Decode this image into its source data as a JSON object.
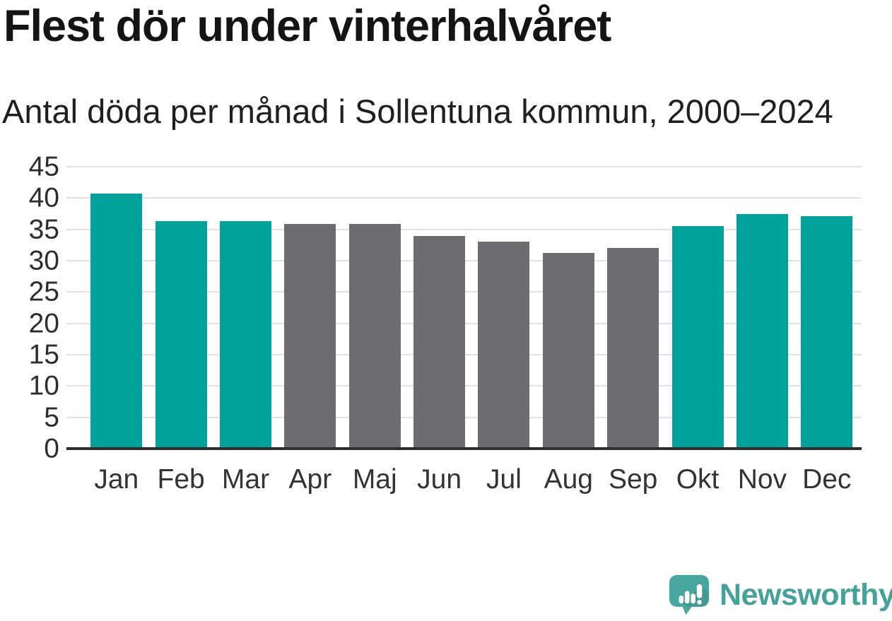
{
  "title": "Flest dör under vinterhalvåret",
  "subtitle": "Antal döda per månad i Sollentuna kommun, 2000–2024",
  "chart_data": {
    "type": "bar",
    "title": "Flest dör under vinterhalvåret",
    "subtitle": "Antal döda per månad i Sollentuna kommun, 2000–2024",
    "categories": [
      "Jan",
      "Feb",
      "Mar",
      "Apr",
      "Maj",
      "Jun",
      "Jul",
      "Aug",
      "Sep",
      "Okt",
      "Nov",
      "Dec"
    ],
    "values": [
      40.7,
      36.3,
      36.3,
      35.9,
      35.9,
      34.0,
      33.0,
      31.2,
      32.0,
      35.5,
      37.5,
      37.1
    ],
    "bar_colors": [
      "teal",
      "teal",
      "teal",
      "gray",
      "gray",
      "gray",
      "gray",
      "gray",
      "gray",
      "teal",
      "teal",
      "teal"
    ],
    "colors": {
      "teal": "#00a29b",
      "gray": "#6c6c71"
    },
    "xlabel": "",
    "ylabel": "",
    "ylim": [
      0,
      45
    ],
    "yticks": [
      0,
      5,
      10,
      15,
      20,
      25,
      30,
      35,
      40,
      45
    ],
    "grid": "horizontal",
    "legend": false,
    "layout": {
      "grid_color": "#e1e1e1",
      "axis_color": "#2e2e2e",
      "tick_label_color": "#2d2d2d"
    }
  },
  "branding": {
    "logo_icon": "newsworthy-logo",
    "text": "Newsworthy",
    "text_color": "#45a29a",
    "logo_color": "#47a69e"
  }
}
